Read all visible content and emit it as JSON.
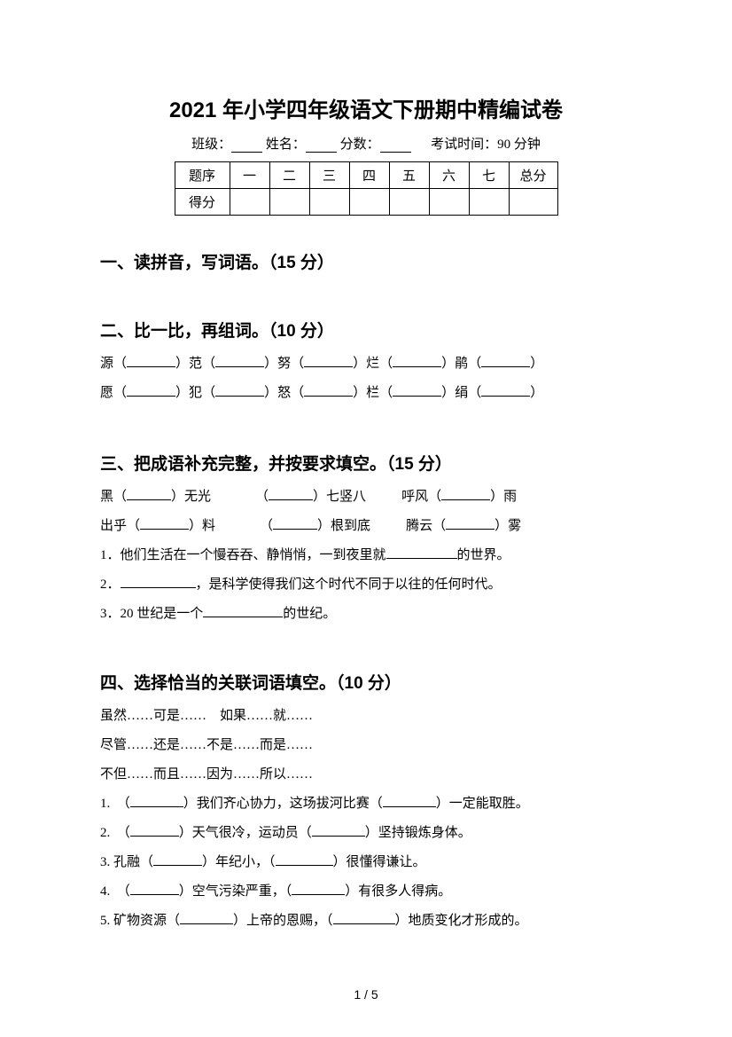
{
  "title": "2021 年小学四年级语文下册期中精编试卷",
  "info": {
    "class_label": "班级：",
    "name_label": "姓名：",
    "score_label": "分数：",
    "exam_time": "考试时间：90 分钟"
  },
  "table": {
    "row1_header": "题序",
    "cols": [
      "一",
      "二",
      "三",
      "四",
      "五",
      "六",
      "七",
      "总分"
    ],
    "row2_header": "得分"
  },
  "section1": {
    "title": "一、读拼音，写词语。（15 分）"
  },
  "section2": {
    "title": "二、比一比，再组词。（10 分）",
    "line1_chars": [
      "源",
      "范",
      "努",
      "烂",
      "鹃"
    ],
    "line2_chars": [
      "愿",
      "犯",
      "怒",
      "栏",
      "绢"
    ]
  },
  "section3": {
    "title": "三、把成语补充完整，并按要求填空。（15 分）",
    "row1": {
      "a_pre": "黑（",
      "a_post": "）无光",
      "b_pre": "（",
      "b_post": "）七竖八",
      "c_pre": "呼风（",
      "c_post": "）雨"
    },
    "row2": {
      "a_pre": "出乎（",
      "a_post": "）料",
      "b_pre": "（",
      "b_post": "）根到底",
      "c_pre": "腾云（",
      "c_post": "）雾"
    },
    "q1_pre": "1．他们生活在一个慢吞吞、静悄悄，一到夜里就",
    "q1_post": "的世界。",
    "q2_pre": "2．",
    "q2_post": "，是科学使得我们这个时代不同于以往的任何时代。",
    "q3_pre": "3．20 世纪是一个",
    "q3_post": "的世纪。"
  },
  "section4": {
    "title": "四、选择恰当的关联词语填空。（10 分）",
    "pairs1": "虽然……可是……　如果……就……",
    "pairs2": "尽管……还是……不是……而是……",
    "pairs3": "不但……而且……因为……所以……",
    "q1": {
      "pre": "1.　（",
      "mid": "）我们齐心协力，这场拔河比赛（",
      "post": "）一定能取胜。"
    },
    "q2": {
      "pre": "2.　（",
      "mid": "）天气很冷，运动员（",
      "post": "）坚持锻炼身体。"
    },
    "q3": {
      "pre": "3. 孔融（",
      "mid": "）年纪小，（",
      "post": "）很懂得谦让。"
    },
    "q4": {
      "pre": "4.　（",
      "mid": "）空气污染严重，（",
      "post": "）有很多人得病。"
    },
    "q5": {
      "pre": "5. 矿物资源（",
      "mid": "）上帝的恩赐，（",
      "post": "）地质变化才形成的。"
    }
  },
  "page_num": "1 / 5"
}
